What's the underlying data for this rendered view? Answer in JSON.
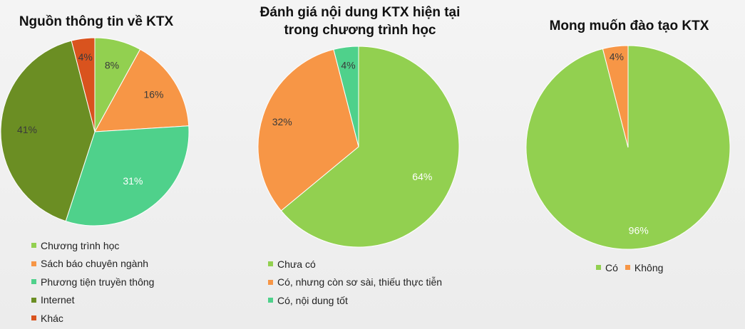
{
  "chart_data": [
    {
      "type": "pie",
      "title": "Nguồn thông tin về KTX",
      "legend_position": "bottom",
      "slices": [
        {
          "label": "Chương trình học",
          "value": 8,
          "display": "8%",
          "color": "#92d050"
        },
        {
          "label": "Sách báo chuyên ngành",
          "value": 16,
          "display": "16%",
          "color": "#f79646"
        },
        {
          "label": "Phương tiện truyền thông",
          "value": 31,
          "display": "31%",
          "color": "#4fd18b"
        },
        {
          "label": "Internet",
          "value": 41,
          "display": "41%",
          "color": "#6b8e23"
        },
        {
          "label": "Khác",
          "value": 4,
          "display": "4%",
          "color": "#d9531e"
        }
      ]
    },
    {
      "type": "pie",
      "title": "Đánh giá nội dung KTX hiện tại trong chương trình học",
      "title_lines": [
        "Đánh giá nội dung KTX hiện tại",
        "trong chương trình học"
      ],
      "legend_position": "bottom",
      "slices": [
        {
          "label": "Chưa có",
          "value": 64,
          "display": "64%",
          "color": "#92d050"
        },
        {
          "label": "Có, nhưng còn sơ sài, thiếu thực tiễn",
          "value": 32,
          "display": "32%",
          "color": "#f79646"
        },
        {
          "label": "Có, nội dung tốt",
          "value": 4,
          "display": "4%",
          "color": "#4fd18b"
        }
      ]
    },
    {
      "type": "pie",
      "title": "Mong muốn đào tạo KTX",
      "legend_position": "bottom",
      "slices": [
        {
          "label": "Có",
          "value": 96,
          "display": "96%",
          "color": "#92d050"
        },
        {
          "label": "Không",
          "value": 4,
          "display": "4%",
          "color": "#f79646"
        }
      ]
    }
  ]
}
